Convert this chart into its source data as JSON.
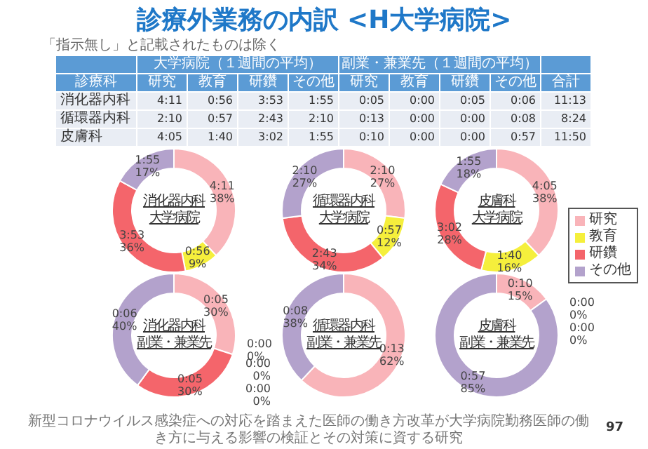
{
  "chart_data": [
    {
      "type": "other",
      "title": "診療外業務の内訳 <H大学病院>",
      "subtitle": "「指示無し」と記載されたものは除く",
      "categories": [
        "研究",
        "教育",
        "研鑽",
        "その他",
        "研究",
        "教育",
        "研鑽",
        "その他",
        "合計"
      ],
      "y_categories": [
        "消化器内科",
        "循環器内科",
        "皮膚科"
      ],
      "cell_labels": [
        [
          "4:11",
          "0:56",
          "3:53",
          "1:55",
          "0:05",
          "0:00",
          "0:05",
          "0:06",
          "11:13"
        ],
        [
          "2:10",
          "0:57",
          "2:43",
          "2:10",
          "0:13",
          "0:00",
          "0:00",
          "0:08",
          "8:24"
        ],
        [
          "4:05",
          "1:40",
          "3:02",
          "1:55",
          "0:10",
          "0:00",
          "0:00",
          "0:57",
          "11:50"
        ]
      ],
      "annotations": [
        "診療科",
        "大学病院（１週間の平均）",
        "副業・兼業先（１週間の平均）",
        "新型コロナウイルス感染症への対応を踏まえた医師の働き方改革が大学病院勤務医師の働き方に与える影響の検証とその対策に資する研究",
        "97"
      ]
    },
    {
      "type": "donut",
      "title": "消化器内科",
      "subtitle": "大学病院",
      "categories": [
        "研究",
        "教育",
        "研鑽",
        "その他"
      ],
      "values": [
        38,
        9,
        36,
        17
      ],
      "colors": [
        "#f9b4b9",
        "#f5ef3c",
        "#f4656b",
        "#b3a2cc"
      ],
      "value_labels": [
        "4:11\n38%",
        "0:56\n9%",
        "3:53\n36%",
        "1:55\n17%"
      ],
      "legend": "right"
    },
    {
      "type": "donut",
      "title": "循環器内科",
      "subtitle": "大学病院",
      "categories": [
        null,
        null,
        null,
        null
      ],
      "values": [
        27,
        12,
        34,
        27
      ],
      "colors": [
        "#f9b4b9",
        "#f5ef3c",
        "#f4656b",
        "#b3a2cc"
      ],
      "value_labels": [
        "2:10\n27%",
        "0:57\n12%",
        "2:43\n34%",
        "2:10\n27%"
      ]
    },
    {
      "type": "donut",
      "title": "皮膚科",
      "subtitle": "大学病院",
      "categories": [
        null,
        null,
        null,
        null
      ],
      "values": [
        38,
        16,
        28,
        18
      ],
      "colors": [
        "#f9b4b9",
        "#f5ef3c",
        "#f4656b",
        "#b3a2cc"
      ],
      "value_labels": [
        "4:05\n38%",
        "1:40\n16%",
        "3:02\n28%",
        "1:55\n18%"
      ]
    },
    {
      "type": "donut",
      "title": "消化器内科",
      "subtitle": "副業・兼業先",
      "categories": [
        null,
        null,
        null,
        null
      ],
      "values": [
        30,
        0,
        30,
        40
      ],
      "colors": [
        "#f9b4b9",
        "#f5ef3c",
        "#f4656b",
        "#b3a2cc"
      ],
      "value_labels": [
        "0:05\n30%",
        "0:00\n0%",
        "0:05\n30%",
        "0:06\n40%"
      ]
    },
    {
      "type": "donut",
      "title": "循環器内科",
      "subtitle": "副業・兼業先",
      "categories": [
        null,
        null,
        null,
        null
      ],
      "values": [
        62,
        0,
        0,
        38
      ],
      "colors": [
        "#f9b4b9",
        "#f5ef3c",
        "#f4656b",
        "#b3a2cc"
      ],
      "value_labels": [
        "0:13\n62%",
        "0:00\n0%",
        "0:00\n0%",
        "0:08\n38%"
      ]
    },
    {
      "type": "donut",
      "title": "皮膚科",
      "subtitle": "副業・兼業先",
      "categories": [
        null,
        null,
        null,
        null
      ],
      "values": [
        15,
        0,
        0,
        85
      ],
      "colors": [
        "#f9b4b9",
        "#f5ef3c",
        "#f4656b",
        "#b3a2cc"
      ],
      "value_labels": [
        "0:10\n15%",
        "0:00\n0%",
        "0:00\n0%",
        "0:57\n85%"
      ]
    }
  ]
}
